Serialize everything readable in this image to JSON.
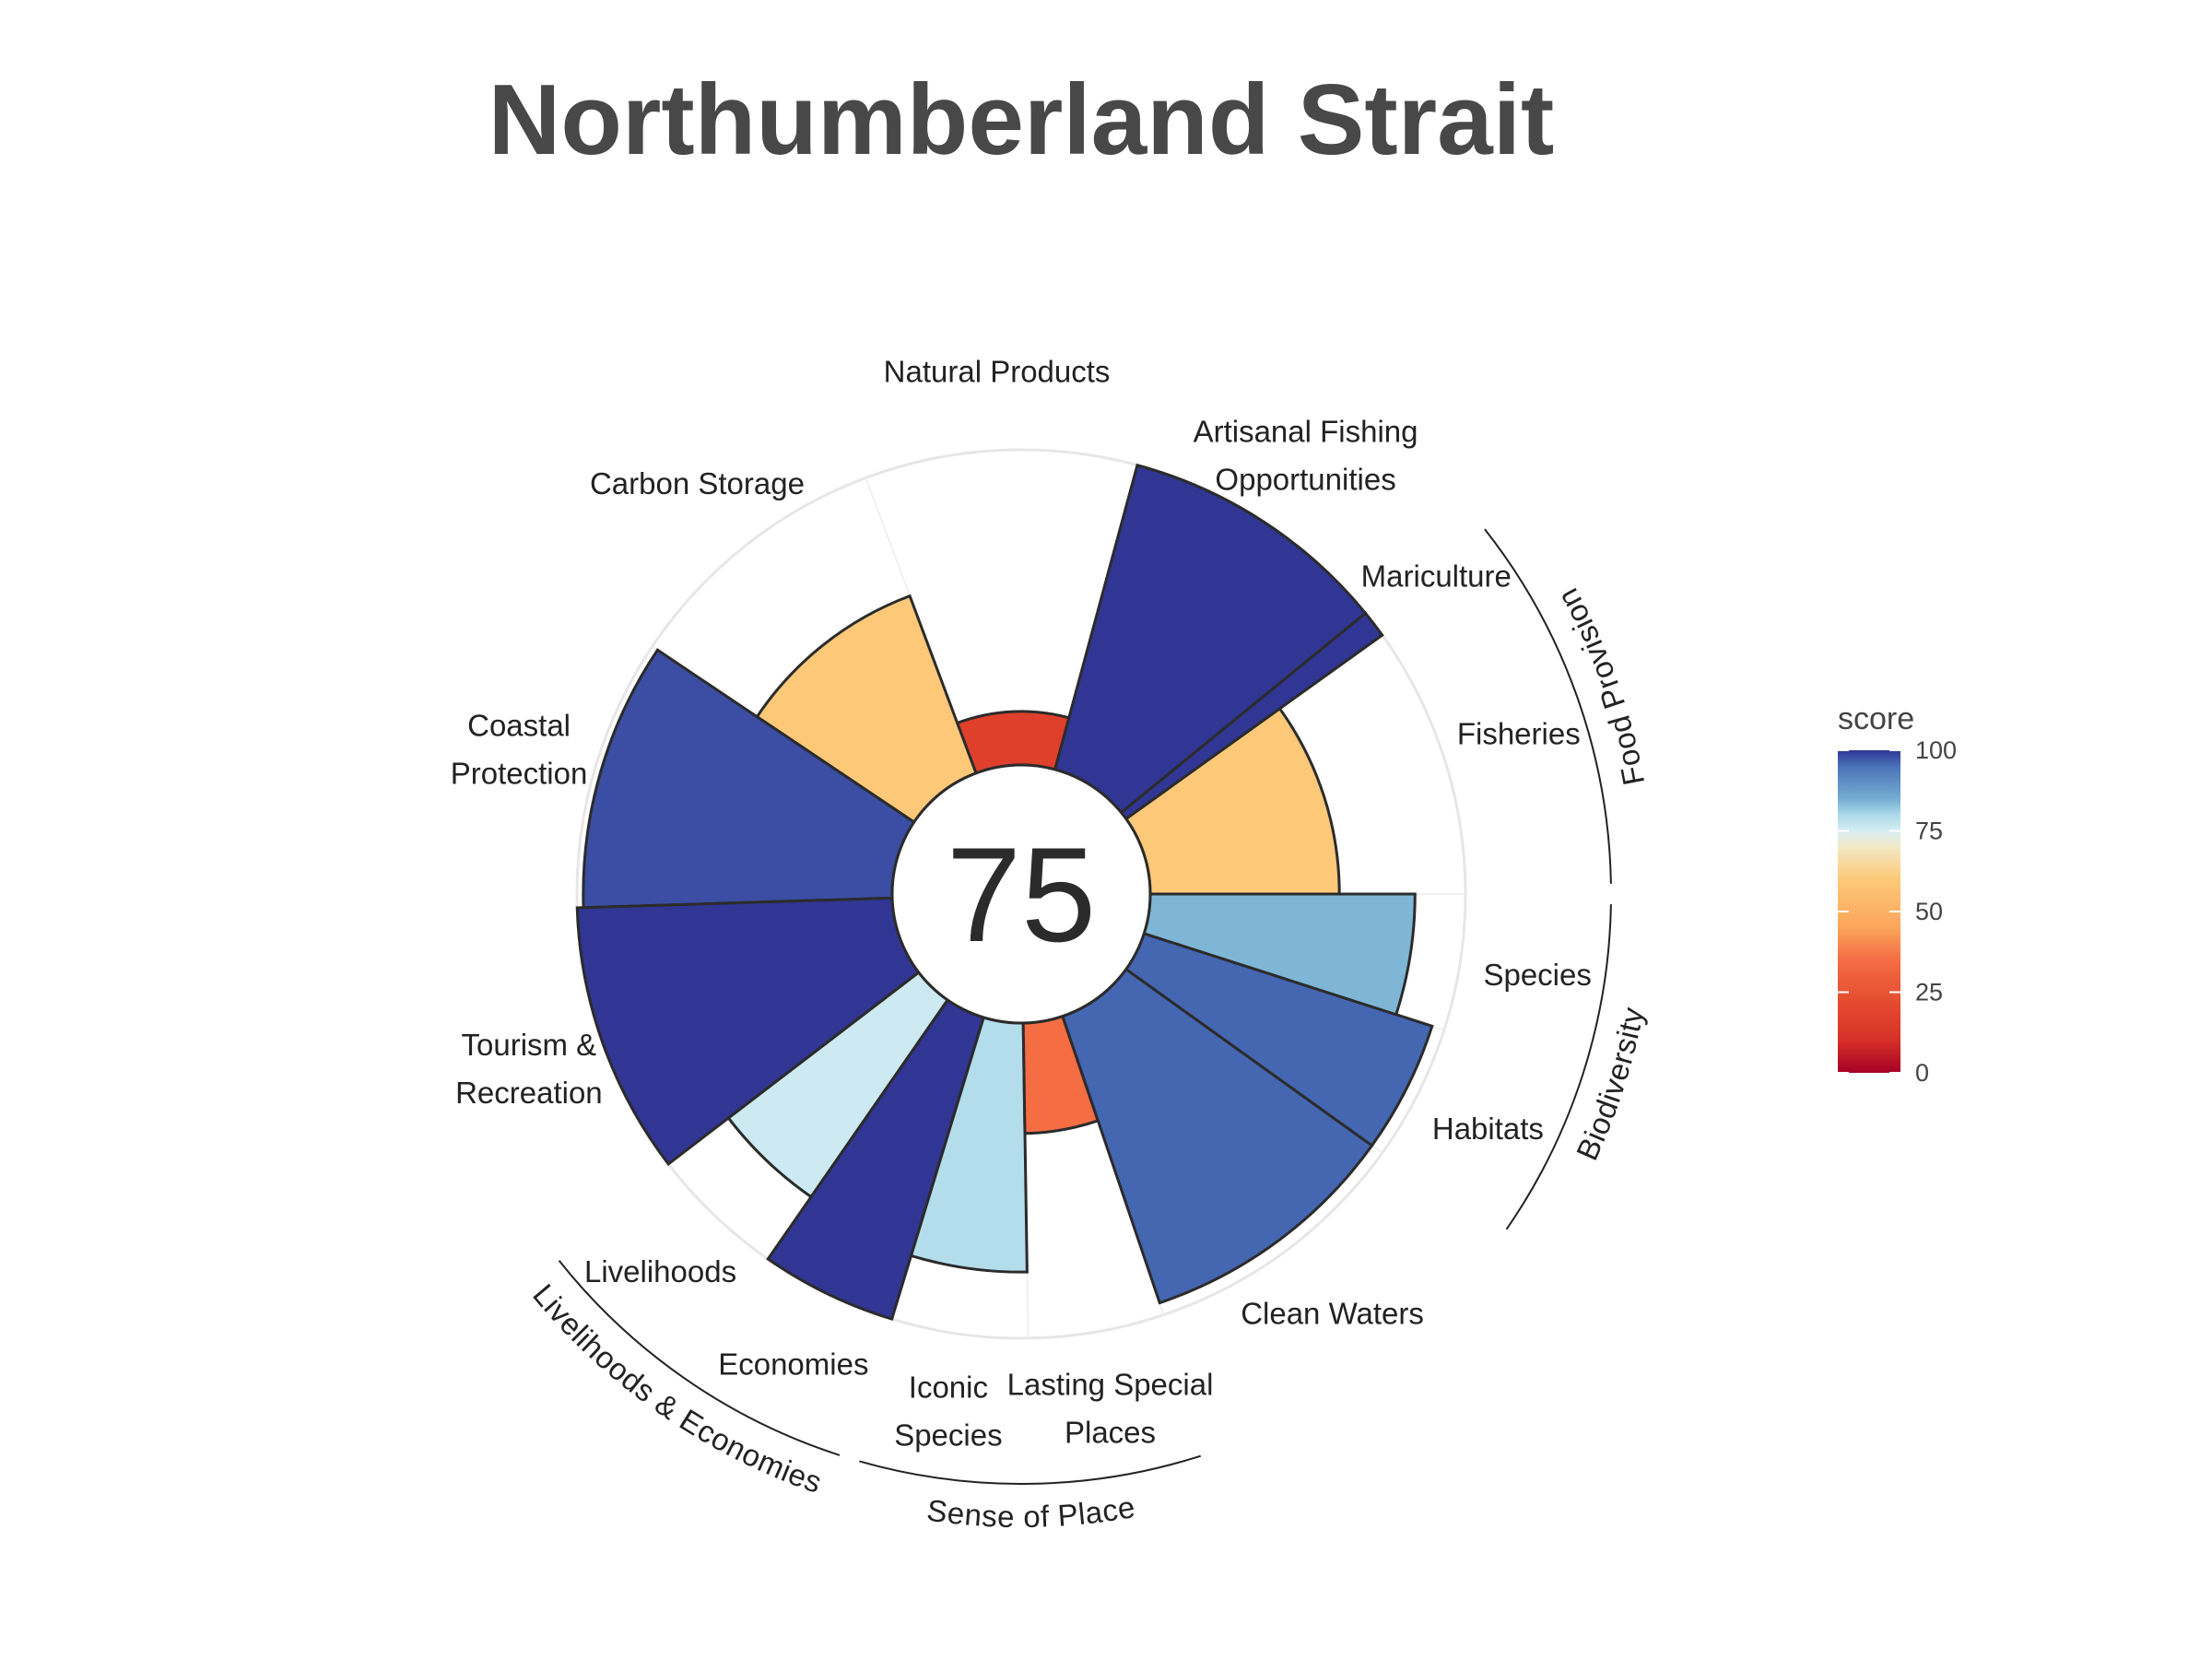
{
  "chart_data": {
    "type": "polar-bar",
    "title": "Northumberland Strait",
    "center_score": "75",
    "ylim": [
      0,
      100
    ],
    "start_angle_deg": 0,
    "petals": [
      {
        "label": "Fisheries",
        "value": 60,
        "weight": 1,
        "goal": "Food Provision"
      },
      {
        "label": "Mariculture",
        "value": 100,
        "weight": 0.1,
        "goal": "Food Provision"
      },
      {
        "label": "Artisanal Fishing Opportunities",
        "label_lines": [
          "Artisanal Fishing",
          "Opportunities"
        ],
        "value": 100,
        "weight": 1
      },
      {
        "label": "Natural Products",
        "value": 17,
        "weight": 1
      },
      {
        "label": "Carbon Storage",
        "value": 60,
        "weight": 1
      },
      {
        "label": "Coastal Protection",
        "label_lines": [
          "Coastal",
          "Protection"
        ],
        "value": 98,
        "weight": 1
      },
      {
        "label": "Tourism & Recreation",
        "label_lines": [
          "Tourism &",
          "Recreation"
        ],
        "value": 100,
        "weight": 1
      },
      {
        "label": "Livelihoods",
        "value": 76,
        "weight": 0.5,
        "goal": "Livelihoods & Economies"
      },
      {
        "label": "Economies",
        "value": 100,
        "weight": 0.5,
        "goal": "Livelihoods & Economies"
      },
      {
        "label": "Iconic Species",
        "label_lines": [
          "Iconic",
          "Species"
        ],
        "value": 79,
        "weight": 0.5,
        "goal": "Sense of Place"
      },
      {
        "label": "Lasting Special Places",
        "label_lines": [
          "Lasting Special",
          "Places"
        ],
        "value": 35,
        "weight": 0.5,
        "goal": "Sense of Place"
      },
      {
        "label": "Clean Waters",
        "value": 96,
        "weight": 1
      },
      {
        "label": "Habitats",
        "value": 96,
        "weight": 0.5,
        "goal": "Biodiversity"
      },
      {
        "label": "Species",
        "value": 84,
        "weight": 0.5,
        "goal": "Biodiversity"
      }
    ],
    "goals": [
      "Food Provision",
      "Biodiversity",
      "Sense of Place",
      "Livelihoods & Economies"
    ],
    "legend": {
      "title": "score",
      "position": "right",
      "ticks": [
        "100",
        "75",
        "50",
        "25",
        "0"
      ]
    },
    "colors": {
      "scale_stops": [
        {
          "at": 0,
          "color": "#a50026"
        },
        {
          "at": 10,
          "color": "#d73027"
        },
        {
          "at": 20,
          "color": "#e2472e"
        },
        {
          "at": 35,
          "color": "#f46d43"
        },
        {
          "at": 45,
          "color": "#fba55b"
        },
        {
          "at": 60,
          "color": "#fdc979"
        },
        {
          "at": 70,
          "color": "#f3e9c4"
        },
        {
          "at": 75,
          "color": "#d6edf3"
        },
        {
          "at": 80,
          "color": "#abd9e9"
        },
        {
          "at": 85,
          "color": "#74add1"
        },
        {
          "at": 95,
          "color": "#4a72b8"
        },
        {
          "at": 100,
          "color": "#313695"
        }
      ],
      "outline": "#2b2b2b",
      "grid": "#e6e6e6",
      "title": "#484848"
    }
  }
}
